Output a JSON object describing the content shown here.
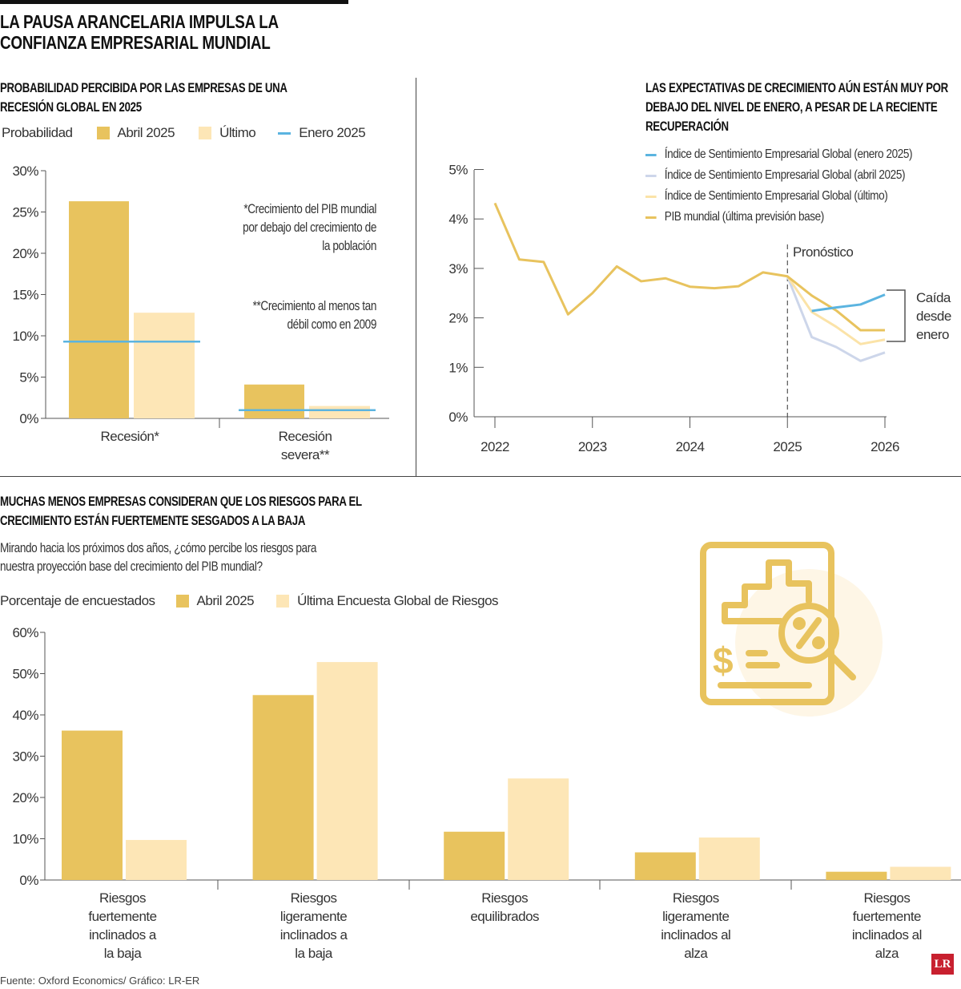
{
  "title": "LA PAUSA ARANCELARIA IMPULSA LA CONFIANZA EMPRESARIAL MUNDIAL",
  "source": "Fuente: Oxford Economics/ Gráfico: LR-ER",
  "logo": "LR",
  "colors": {
    "abril": "#E8C35E",
    "ultimo": "#FDE6B6",
    "enero": "#5BB4E0",
    "abril_line": "#CDD6EA",
    "ultimo_line": "#FBE3A8",
    "gdp": "#E8C35E"
  },
  "chart_data": [
    {
      "type": "bar",
      "title": "PROBABILIDAD PERCIBIDA POR LAS EMPRESAS DE UNA RECESIÓN GLOBAL EN 2025",
      "ylabel": "Probabilidad",
      "categories": [
        "Recesión*",
        "Recesión severa**"
      ],
      "series": [
        {
          "name": "Abril 2025",
          "values": [
            26.3,
            4.1
          ]
        },
        {
          "name": "Último",
          "values": [
            12.8,
            1.5
          ]
        },
        {
          "name": "Enero 2025",
          "values": [
            9.3,
            1.0
          ],
          "style": "line"
        }
      ],
      "yticks": [
        "0%",
        "5%",
        "10%",
        "15%",
        "20%",
        "25%",
        "30%"
      ],
      "ylim": [
        0,
        30
      ],
      "annotations": [
        "*Crecimiento del PIB mundial por debajo del crecimiento de la población",
        "**Crecimiento al menos tan débil como en 2009"
      ],
      "legend": "top"
    },
    {
      "type": "line",
      "title": "LAS EXPECTATIVAS DE CRECIMIENTO AÚN ESTÁN MUY POR DEBAJO DEL NIVEL DE ENERO, A PESAR DE LA RECIENTE RECUPERACIÓN",
      "xticks": [
        "2022",
        "2023",
        "2024",
        "2025",
        "2026"
      ],
      "yticks": [
        "0%",
        "1%",
        "2%",
        "3%",
        "4%",
        "5%"
      ],
      "ylim": [
        0,
        5
      ],
      "xlim": [
        2022,
        2026
      ],
      "series": [
        {
          "name": "Índice de Sentimiento Empresarial Global (enero 2025)",
          "x": [
            2025.25,
            2025.5,
            2025.75,
            2026
          ],
          "y": [
            2.14,
            2.21,
            2.27,
            2.47
          ]
        },
        {
          "name": "Índice de Sentimiento Empresarial Global (abril 2025)",
          "x": [
            2025,
            2025.25,
            2025.5,
            2025.75,
            2026
          ],
          "y": [
            2.84,
            1.61,
            1.41,
            1.13,
            1.3
          ]
        },
        {
          "name": "Índice de Sentimiento Empresarial Global (último)",
          "x": [
            2025,
            2025.25,
            2025.5,
            2025.75,
            2026
          ],
          "y": [
            2.84,
            2.12,
            1.82,
            1.47,
            1.56
          ]
        },
        {
          "name": "PIB mundial (última previsión base)",
          "x": [
            2022,
            2022.25,
            2022.5,
            2022.75,
            2023,
            2023.25,
            2023.5,
            2023.75,
            2024,
            2024.25,
            2024.5,
            2024.75,
            2025,
            2025.25,
            2025.5,
            2025.75,
            2026
          ],
          "y": [
            4.32,
            3.18,
            3.13,
            2.07,
            2.5,
            3.04,
            2.74,
            2.8,
            2.63,
            2.6,
            2.64,
            2.92,
            2.84,
            2.45,
            2.15,
            1.75,
            1.75
          ]
        }
      ],
      "annotations": {
        "forecast": "Pronóstico",
        "drop": "Caída desde enero"
      },
      "legend": "top-right"
    },
    {
      "type": "bar",
      "title": "MUCHAS MENOS EMPRESAS CONSIDERAN QUE LOS RIESGOS PARA EL CRECIMIENTO ESTÁN FUERTEMENTE SESGADOS A LA BAJA",
      "subtitle": "Mirando hacia los próximos dos años, ¿cómo percibe los riesgos para nuestra proyección base del crecimiento del PIB mundial?",
      "ylabel": "Porcentaje de encuestados",
      "categories": [
        "Riesgos fuertemente inclinados a la baja",
        "Riesgos ligeramente inclinados a la baja",
        "Riesgos equilibrados",
        "Riesgos ligeramente inclinados al alza",
        "Riesgos fuertemente inclinados al alza"
      ],
      "series": [
        {
          "name": "Abril 2025",
          "values": [
            36.2,
            44.8,
            11.7,
            6.7,
            2.0
          ]
        },
        {
          "name": "Última Encuesta Global de Riesgos",
          "values": [
            9.7,
            52.8,
            24.6,
            10.3,
            3.2
          ]
        }
      ],
      "yticks": [
        "0%",
        "10%",
        "20%",
        "30%",
        "40%",
        "50%",
        "60%"
      ],
      "ylim": [
        0,
        60
      ],
      "legend": "top"
    }
  ]
}
